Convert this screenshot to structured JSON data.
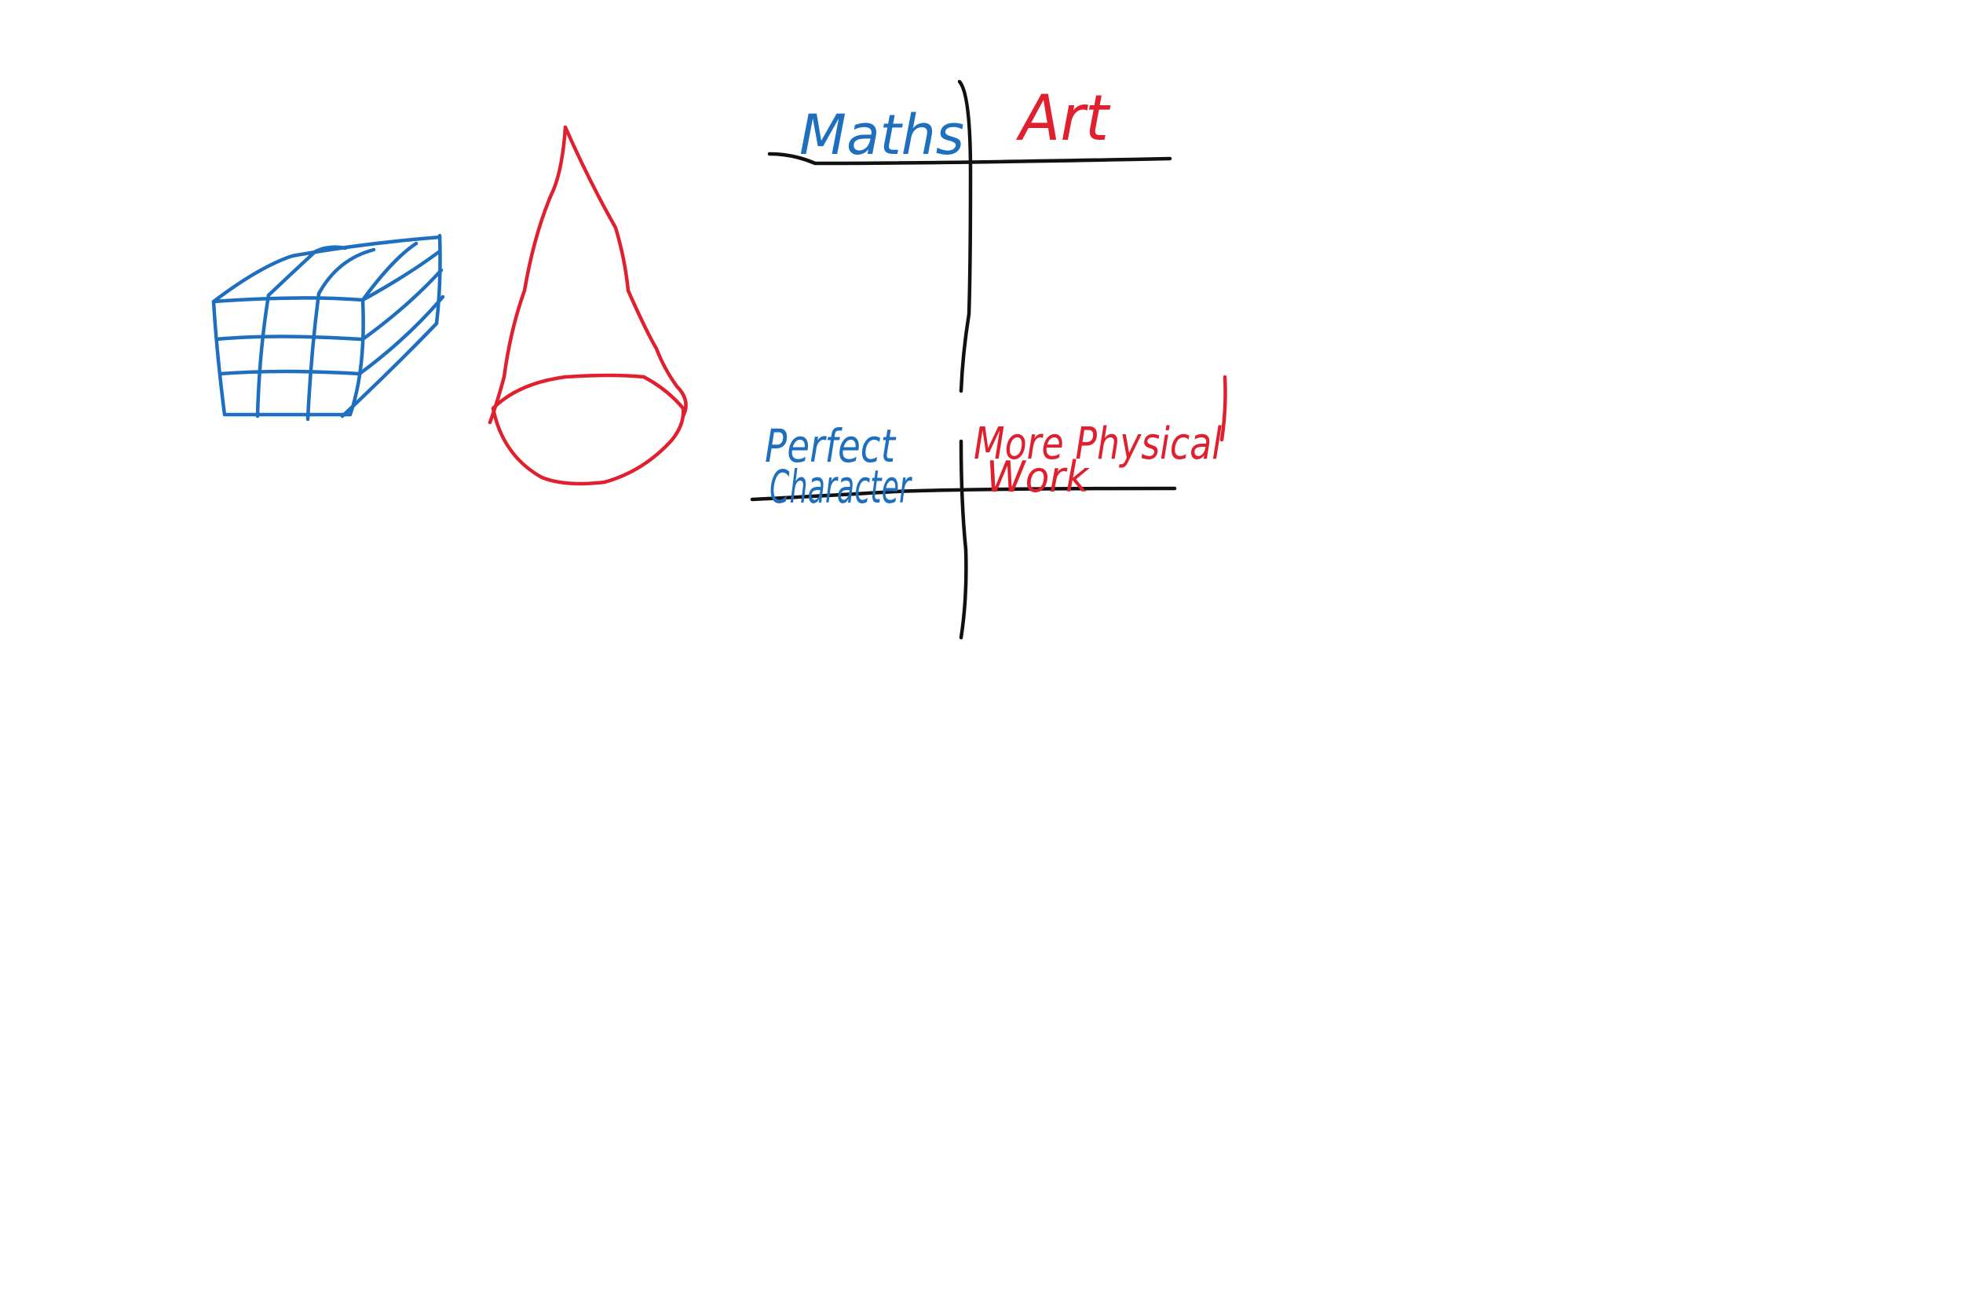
{
  "canvas": {
    "background": "#ffffff"
  },
  "colors": {
    "blue": "#1f6fbf",
    "red": "#e0202e",
    "black": "#111111"
  },
  "labels": {
    "maths": "Maths",
    "art": "Art",
    "perfect": "Perfect",
    "character": "Character",
    "more_physical": "More Physical",
    "work": "Work"
  },
  "drawings": {
    "cube": "blue grid cube sketch",
    "cone": "red cone sketch"
  }
}
